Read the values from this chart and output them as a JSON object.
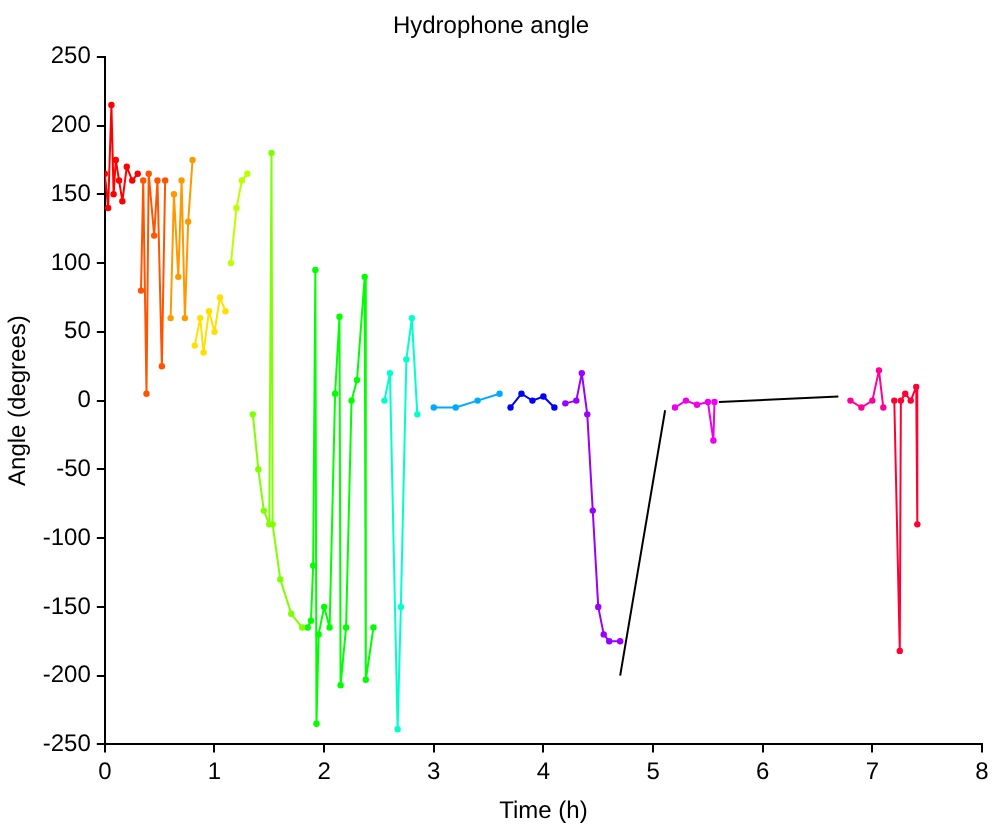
{
  "chart_data": {
    "type": "line",
    "title": "Hydrophone angle",
    "xlabel": "Time (h)",
    "ylabel": "Angle (degrees)",
    "xlim": [
      0,
      8
    ],
    "xticks": [
      0,
      1,
      2,
      3,
      4,
      5,
      6,
      7,
      8
    ],
    "ylim": [
      -250,
      250
    ],
    "yticks": [
      -250,
      -200,
      -150,
      -100,
      -50,
      0,
      50,
      100,
      150,
      200,
      250
    ],
    "grid": false,
    "legend": false,
    "marker": "circle",
    "line_style": "solid",
    "series": [
      {
        "color": "#ff0000",
        "x": [
          0,
          0.03,
          0.06,
          0.08,
          0.1,
          0.13,
          0.16,
          0.2,
          0.25,
          0.3
        ],
        "values": [
          165,
          140,
          215,
          150,
          175,
          160,
          145,
          170,
          160,
          165
        ]
      },
      {
        "color": "#ff5500",
        "x": [
          0.33,
          0.35,
          0.38,
          0.4,
          0.45,
          0.48,
          0.52,
          0.55
        ],
        "values": [
          80,
          160,
          5,
          165,
          120,
          160,
          25,
          160
        ]
      },
      {
        "color": "#ff9900",
        "x": [
          0.6,
          0.63,
          0.67,
          0.7,
          0.73,
          0.76,
          0.8
        ],
        "values": [
          60,
          150,
          90,
          160,
          60,
          130,
          175
        ]
      },
      {
        "color": "#ffe000",
        "x": [
          0.82,
          0.87,
          0.9,
          0.95,
          1.0,
          1.05,
          1.1
        ],
        "values": [
          40,
          60,
          35,
          65,
          50,
          75,
          65
        ]
      },
      {
        "color": "#bbff00",
        "x": [
          1.15,
          1.2,
          1.25,
          1.3
        ],
        "values": [
          100,
          140,
          160,
          165
        ]
      },
      {
        "color": "#80ff00",
        "x": [
          1.35,
          1.4,
          1.45,
          1.5,
          1.52,
          1.53,
          1.6,
          1.7,
          1.8
        ],
        "values": [
          -10,
          -50,
          -80,
          -90,
          180,
          -90,
          -130,
          -155,
          -165
        ]
      },
      {
        "color": "#00ff00",
        "x": [
          1.85,
          1.88,
          1.9,
          1.92,
          1.93,
          1.95,
          2.0,
          2.05,
          2.1,
          2.14,
          2.15,
          2.2,
          2.25,
          2.3,
          2.37,
          2.38,
          2.45
        ],
        "values": [
          -165,
          -160,
          -120,
          95,
          -235,
          -170,
          -150,
          -165,
          5,
          61,
          -207,
          -165,
          0,
          15,
          90,
          -203,
          -165
        ]
      },
      {
        "color": "#00ffcc",
        "x": [
          2.55,
          2.6,
          2.67,
          2.7,
          2.75,
          2.8,
          2.85
        ],
        "values": [
          0,
          20,
          -239,
          -150,
          30,
          60,
          -10
        ]
      },
      {
        "color": "#00aaff",
        "x": [
          3.0,
          3.2,
          3.4,
          3.6
        ],
        "values": [
          -5,
          -5,
          0,
          5
        ]
      },
      {
        "color": "#0000ff",
        "x": [
          3.7,
          3.8,
          3.9,
          4.0,
          4.1
        ],
        "values": [
          -5,
          5,
          0,
          3,
          -5
        ]
      },
      {
        "color": "#9900ff",
        "x": [
          4.2,
          4.3,
          4.35,
          4.4,
          4.45,
          4.5,
          4.55,
          4.6,
          4.7
        ],
        "values": [
          -2,
          0,
          20,
          -10,
          -80,
          -150,
          -170,
          -175,
          -175
        ]
      },
      {
        "color": "#000000",
        "marker": "none",
        "x": [
          4.7,
          5.11
        ],
        "values": [
          -200,
          -7
        ]
      },
      {
        "color": "#ee00ee",
        "x": [
          5.2,
          5.3,
          5.4,
          5.5,
          5.55,
          5.56
        ],
        "values": [
          -5,
          0,
          -3,
          -1,
          -29,
          -1
        ]
      },
      {
        "color": "#000000",
        "marker": "none",
        "x": [
          5.6,
          6.69
        ],
        "values": [
          -1,
          3
        ]
      },
      {
        "color": "#ff0099",
        "x": [
          6.8,
          6.9,
          7.0,
          7.06,
          7.1
        ],
        "values": [
          0,
          -5,
          0,
          22,
          -5
        ]
      },
      {
        "color": "#ff0033",
        "x": [
          7.2,
          7.25,
          7.26,
          7.3,
          7.35,
          7.4,
          7.41
        ],
        "values": [
          0,
          -182,
          0,
          5,
          0,
          10,
          -90
        ]
      }
    ]
  }
}
